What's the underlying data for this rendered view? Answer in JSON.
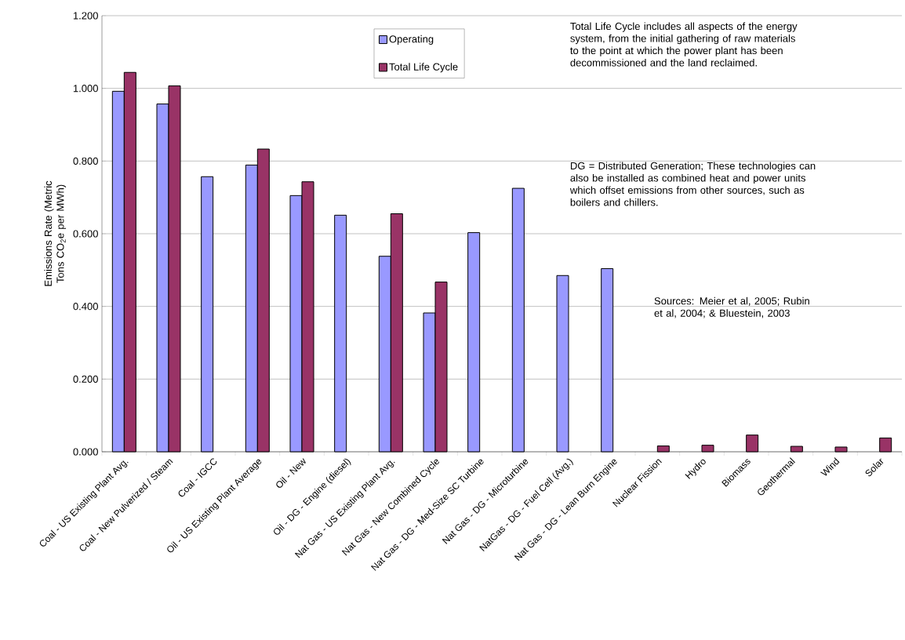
{
  "chart_data": {
    "type": "bar",
    "ylabel": "Emissions Rate (Metric Tons CO$_{2}$e per MWh)",
    "categories": [
      "Coal - US Existing Plant Avg.",
      "Coal - New Pulverized / Steam",
      "Coal - IGCC",
      "Oil - US Existing Plant Average",
      "Oil - New",
      "Oil - DG - Engine (diesel)",
      "Nat Gas - US Existing Plant Avg.",
      "Nat Gas - New Combined Cycle",
      "Nat Gas - DG - Med-Size SC Turbine",
      "Nat Gas - DG - Microturbine",
      "NatGas - DG - Fuel Cell (Avg.)",
      "Nat Gas - DG - Lean Burn Engine",
      "Nuclear Fission",
      "Hydro",
      "Biomass",
      "Geothermal",
      "Wind",
      "Solar"
    ],
    "series": [
      {
        "name": "Operating",
        "color": "#9999ff",
        "values": [
          0.992,
          0.957,
          0.757,
          0.789,
          0.705,
          0.651,
          0.538,
          0.382,
          0.603,
          0.725,
          0.485,
          0.504,
          null,
          null,
          null,
          null,
          null,
          null
        ]
      },
      {
        "name": "Total Life Cycle",
        "color": "#993366",
        "values": [
          1.044,
          1.007,
          null,
          0.833,
          0.743,
          null,
          0.655,
          0.467,
          null,
          null,
          null,
          null,
          0.016,
          0.018,
          0.046,
          0.015,
          0.013,
          0.038
        ]
      }
    ],
    "ylim": [
      0,
      1.2
    ],
    "yticks": [
      {
        "value": 0,
        "label": "0.000"
      },
      {
        "value": 0.2,
        "label": "0.200"
      },
      {
        "value": 0.4,
        "label": "0.400"
      },
      {
        "value": 0.6,
        "label": "0.600"
      },
      {
        "value": 0.8,
        "label": "0.800"
      },
      {
        "value": 1.0,
        "label": "1.000"
      },
      {
        "value": 1.2,
        "label": "1.200"
      }
    ],
    "grid": "y",
    "legend": "top",
    "annotations": [
      "Total Life Cycle includes all aspects of the energy system, from the initial gathering of raw materials to the point at which the power plant has been decommissioned and the land reclaimed.",
      "DG = Distributed Generation; These technologies can also be installed as combined heat and power units which offset emissions from other sources, such as boilers and chillers.",
      "Sources: Meier et al, 2005; Rubin et al, 2004; & Bluestein, 2003"
    ]
  }
}
